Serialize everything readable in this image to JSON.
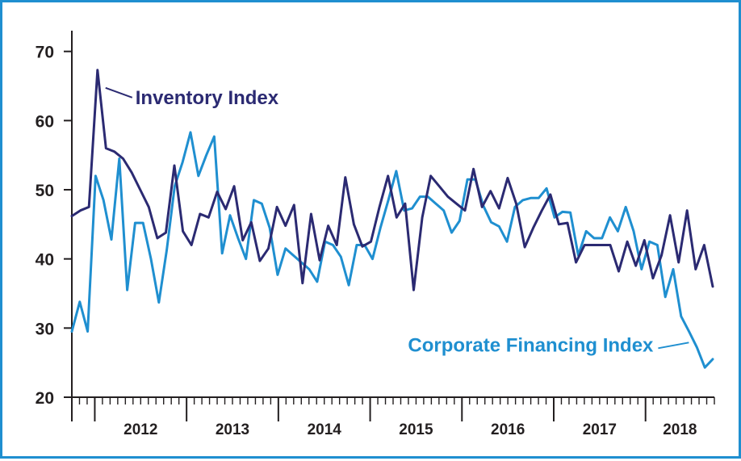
{
  "chart_data": {
    "type": "line",
    "title": "",
    "xlabel": "",
    "ylabel": "",
    "ylim": [
      20,
      73
    ],
    "yticks": [
      20,
      30,
      40,
      50,
      60,
      70
    ],
    "xticks": [
      "2012",
      "2013",
      "2014",
      "2015",
      "2016",
      "2017",
      "2018"
    ],
    "x_start": "2011-10",
    "x_end": "2018-10",
    "grid": false,
    "legend": "none (direct labels)",
    "series": [
      {
        "name": "Inventory Index",
        "color": "#2b2a72",
        "values": [
          46.2,
          47,
          47.5,
          67.3,
          56,
          55.5,
          54.5,
          52.5,
          50,
          47.5,
          43,
          43.8,
          53.5,
          44,
          42,
          46.5,
          46,
          49.7,
          47.2,
          50.5,
          42.7,
          45.3,
          39.7,
          41.5,
          47.5,
          44.8,
          47.8,
          36.5,
          46.5,
          39.8,
          44.8,
          42,
          51.8,
          45,
          41.8,
          42.5,
          47.5,
          52,
          46,
          48,
          35.5,
          46,
          52,
          50.5,
          49,
          48,
          47,
          53,
          47.5,
          49.8,
          47.3,
          51.7,
          48,
          41.7,
          44.5,
          47,
          49.3,
          45,
          45.2,
          39.5,
          42,
          42,
          42,
          42,
          38.2,
          42.5,
          39,
          42.7,
          37.2,
          40.5,
          46.3,
          39.5,
          47,
          38.5,
          42,
          36
        ]
      },
      {
        "name": "Corporate Financing Index",
        "color": "#1f8fd0",
        "values": [
          29.5,
          33.8,
          29.5,
          52,
          48.5,
          42.8,
          54.5,
          35.5,
          45.2,
          45.2,
          40,
          33.7,
          41.3,
          50.5,
          54,
          58.3,
          52,
          55,
          57.7,
          40.8,
          46.3,
          43,
          40,
          48.5,
          48,
          44.5,
          37.7,
          41.5,
          40.5,
          39.5,
          38.5,
          36.7,
          42.5,
          42,
          40.3,
          36.2,
          42,
          42,
          40,
          44.5,
          48.5,
          52.7,
          47,
          47.3,
          49,
          49,
          48,
          47,
          43.8,
          45.5,
          51.5,
          51.5,
          47.7,
          45.3,
          44.7,
          42.5,
          47.5,
          48.5,
          48.8,
          48.8,
          50.2,
          46,
          46.8,
          46.7,
          40.5,
          44,
          43,
          43,
          46,
          44,
          47.5,
          44,
          38.5,
          42.5,
          42,
          34.5,
          38.5,
          31.7,
          29.5,
          27.2,
          24.3,
          25.5
        ]
      }
    ]
  }
}
